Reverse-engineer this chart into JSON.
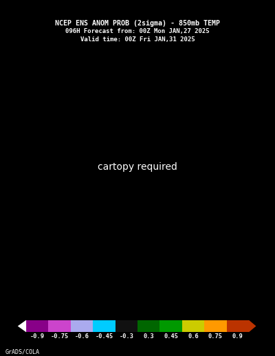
{
  "title_line1": "NCEP ENS ANOM PROB (2sigma) - 850mb TEMP",
  "title_line2": "096H Forecast from: 00Z Mon JAN,27 2025",
  "title_line3": "Valid time: 00Z Fri JAN,31 2025",
  "colorbar_labels": [
    "-0.9",
    "-0.75",
    "-0.6",
    "-0.45",
    "-0.3",
    "0.3",
    "0.45",
    "0.6",
    "0.75",
    "0.9"
  ],
  "cb_colors": [
    "#880088",
    "#cc44cc",
    "#aaaaee",
    "#00ccff",
    "#111111",
    "#006600",
    "#009900",
    "#cccc00",
    "#ff9900",
    "#bb3300"
  ],
  "background_color": "#000000",
  "text_color": "#ffffff",
  "credit_text": "GrADS/COLA",
  "fig_width": 4.0,
  "fig_height": 5.18,
  "dpi": 100,
  "lon_min": -30,
  "lon_max": 70,
  "lat_min": 25,
  "lat_max": 80,
  "grid_lons": [
    -20,
    0,
    20,
    40,
    60
  ],
  "grid_lats": [
    30,
    40,
    50,
    60,
    70
  ],
  "green_dark": "#006600",
  "green_light": "#00bb00",
  "cyan_color": "#00ccff",
  "blue_color": "#4444aa",
  "white_color": "#ffffff"
}
